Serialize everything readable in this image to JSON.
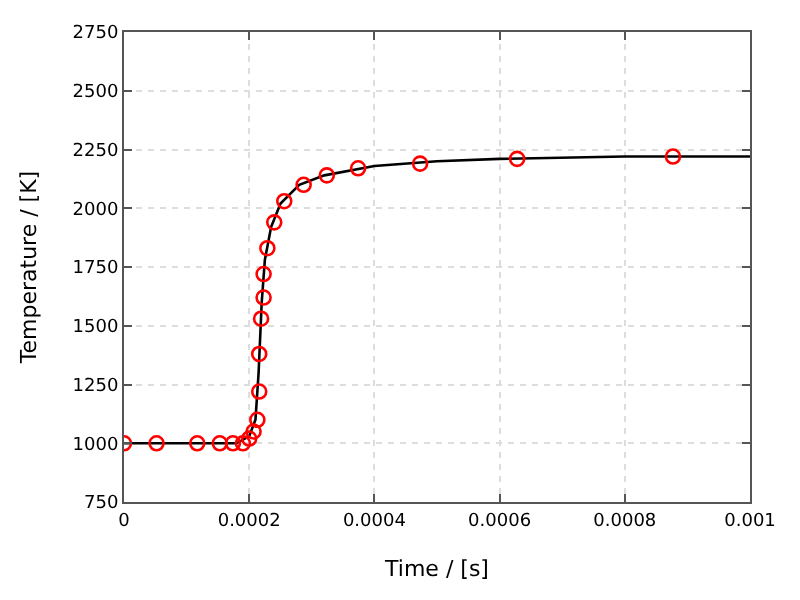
{
  "chart_data": {
    "type": "line",
    "xlabel": "Time / [s]",
    "ylabel": "Temperature / [K]",
    "xlim": [
      0,
      0.001
    ],
    "xticks": [
      0,
      0.0002,
      0.0004,
      0.0006,
      0.0008,
      0.001
    ],
    "ylim": [
      750,
      2750
    ],
    "yticks": [
      750,
      1000,
      1250,
      1500,
      1750,
      2000,
      2250,
      2500,
      2750
    ],
    "grid": true,
    "series": [
      {
        "color": "#000000",
        "line_style": "solid",
        "marker": "none",
        "x": [
          0,
          0.00018,
          0.0002,
          0.00021,
          0.000215,
          0.00022,
          0.000225,
          0.000235,
          0.00025,
          0.00028,
          0.00032,
          0.0004,
          0.0005,
          0.0006,
          0.0008,
          0.001
        ],
        "values": [
          1000,
          1000,
          1030,
          1100,
          1300,
          1600,
          1780,
          1920,
          2020,
          2100,
          2140,
          2180,
          2200,
          2210,
          2220,
          2220
        ]
      },
      {
        "type": "scatter",
        "color": "#ff0000",
        "marker": "circle",
        "x": [
          0,
          5.2e-05,
          0.000117,
          0.000153,
          0.000174,
          0.00019,
          0.0002,
          0.000207,
          0.000213,
          0.000216,
          0.000216,
          0.000219,
          0.000223,
          0.000223,
          0.000229,
          0.00024,
          0.000256,
          0.000287,
          0.000324,
          0.000374,
          0.000473,
          0.000628,
          0.000877
        ],
        "values": [
          1000,
          1000,
          1000,
          1000,
          1000,
          1000,
          1020,
          1050,
          1100,
          1220,
          1380,
          1530,
          1620,
          1720,
          1830,
          1940,
          2030,
          2100,
          2140,
          2170,
          2190,
          2210,
          2220
        ]
      }
    ]
  }
}
